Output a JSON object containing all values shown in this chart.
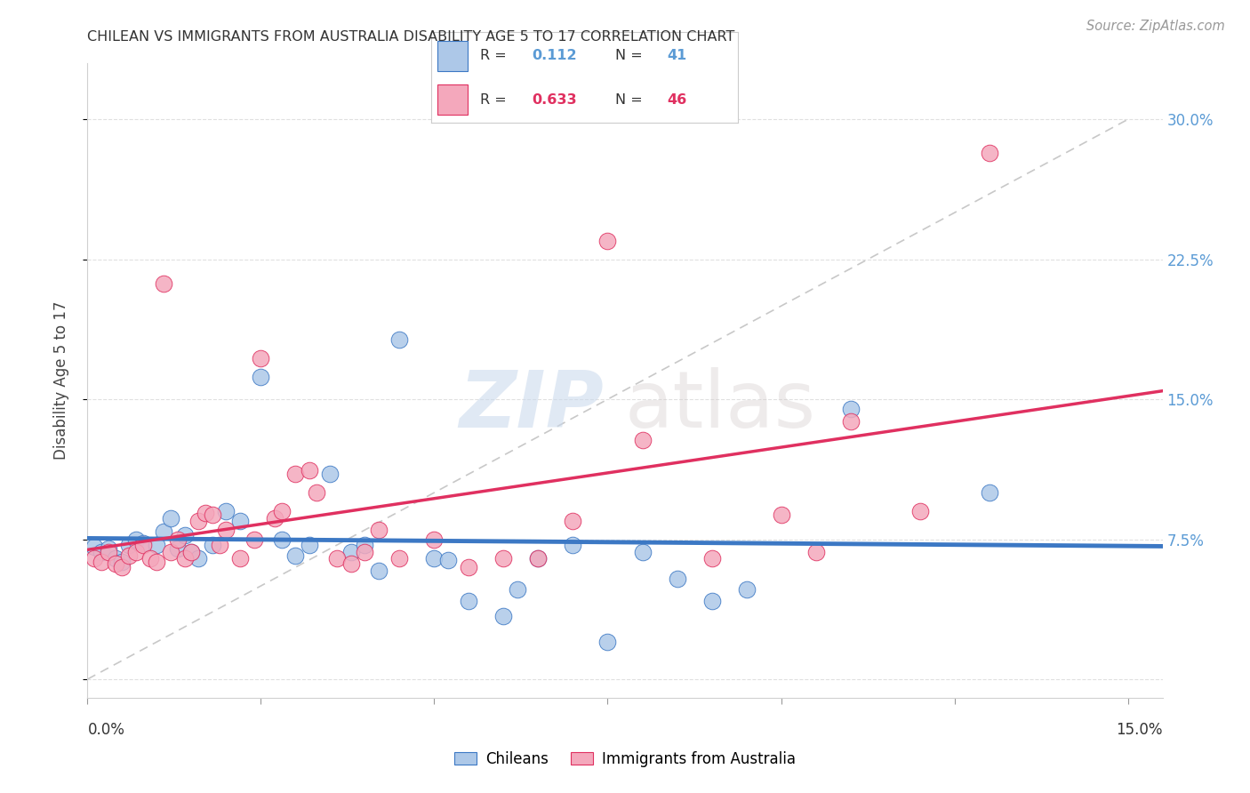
{
  "title": "CHILEAN VS IMMIGRANTS FROM AUSTRALIA DISABILITY AGE 5 TO 17 CORRELATION CHART",
  "source": "Source: ZipAtlas.com",
  "ylabel": "Disability Age 5 to 17",
  "xlim": [
    0.0,
    0.155
  ],
  "ylim": [
    -0.01,
    0.33
  ],
  "ytick_values": [
    0.0,
    0.075,
    0.15,
    0.225,
    0.3
  ],
  "ytick_labels": [
    "",
    "7.5%",
    "15.0%",
    "22.5%",
    "30.0%"
  ],
  "xtick_values": [
    0.0,
    0.025,
    0.05,
    0.075,
    0.1,
    0.125,
    0.15
  ],
  "chileans_color": "#adc8e8",
  "chileans_edge_color": "#3c78c4",
  "australia_color": "#f4a8bc",
  "australia_edge_color": "#e03060",
  "trend_chileans_color": "#3c78c4",
  "trend_australia_color": "#e03060",
  "diagonal_color": "#c8c8c8",
  "right_label_color": "#5b9bd5",
  "grid_color": "#e0e0e0",
  "chileans_x": [
    0.001,
    0.002,
    0.003,
    0.004,
    0.005,
    0.006,
    0.007,
    0.008,
    0.01,
    0.011,
    0.012,
    0.013,
    0.014,
    0.015,
    0.016,
    0.018,
    0.02,
    0.022,
    0.025,
    0.028,
    0.03,
    0.032,
    0.035,
    0.038,
    0.04,
    0.042,
    0.045,
    0.05,
    0.052,
    0.055,
    0.06,
    0.062,
    0.065,
    0.07,
    0.075,
    0.08,
    0.085,
    0.09,
    0.095,
    0.11,
    0.13
  ],
  "chileans_y": [
    0.071,
    0.068,
    0.07,
    0.065,
    0.063,
    0.072,
    0.075,
    0.073,
    0.072,
    0.079,
    0.086,
    0.07,
    0.077,
    0.068,
    0.065,
    0.072,
    0.09,
    0.085,
    0.162,
    0.075,
    0.066,
    0.072,
    0.11,
    0.068,
    0.072,
    0.058,
    0.182,
    0.065,
    0.064,
    0.042,
    0.034,
    0.048,
    0.065,
    0.072,
    0.02,
    0.068,
    0.054,
    0.042,
    0.048,
    0.145,
    0.1
  ],
  "australia_x": [
    0.001,
    0.002,
    0.003,
    0.004,
    0.005,
    0.006,
    0.007,
    0.008,
    0.009,
    0.01,
    0.011,
    0.012,
    0.013,
    0.014,
    0.015,
    0.016,
    0.017,
    0.018,
    0.019,
    0.02,
    0.022,
    0.024,
    0.025,
    0.027,
    0.028,
    0.03,
    0.032,
    0.033,
    0.036,
    0.038,
    0.04,
    0.042,
    0.045,
    0.05,
    0.055,
    0.06,
    0.065,
    0.07,
    0.075,
    0.08,
    0.09,
    0.1,
    0.105,
    0.11,
    0.12,
    0.13
  ],
  "australia_y": [
    0.065,
    0.063,
    0.068,
    0.062,
    0.06,
    0.066,
    0.068,
    0.072,
    0.065,
    0.063,
    0.212,
    0.068,
    0.075,
    0.065,
    0.068,
    0.085,
    0.089,
    0.088,
    0.072,
    0.08,
    0.065,
    0.075,
    0.172,
    0.086,
    0.09,
    0.11,
    0.112,
    0.1,
    0.065,
    0.062,
    0.068,
    0.08,
    0.065,
    0.075,
    0.06,
    0.065,
    0.065,
    0.085,
    0.235,
    0.128,
    0.065,
    0.088,
    0.068,
    0.138,
    0.09,
    0.282
  ]
}
